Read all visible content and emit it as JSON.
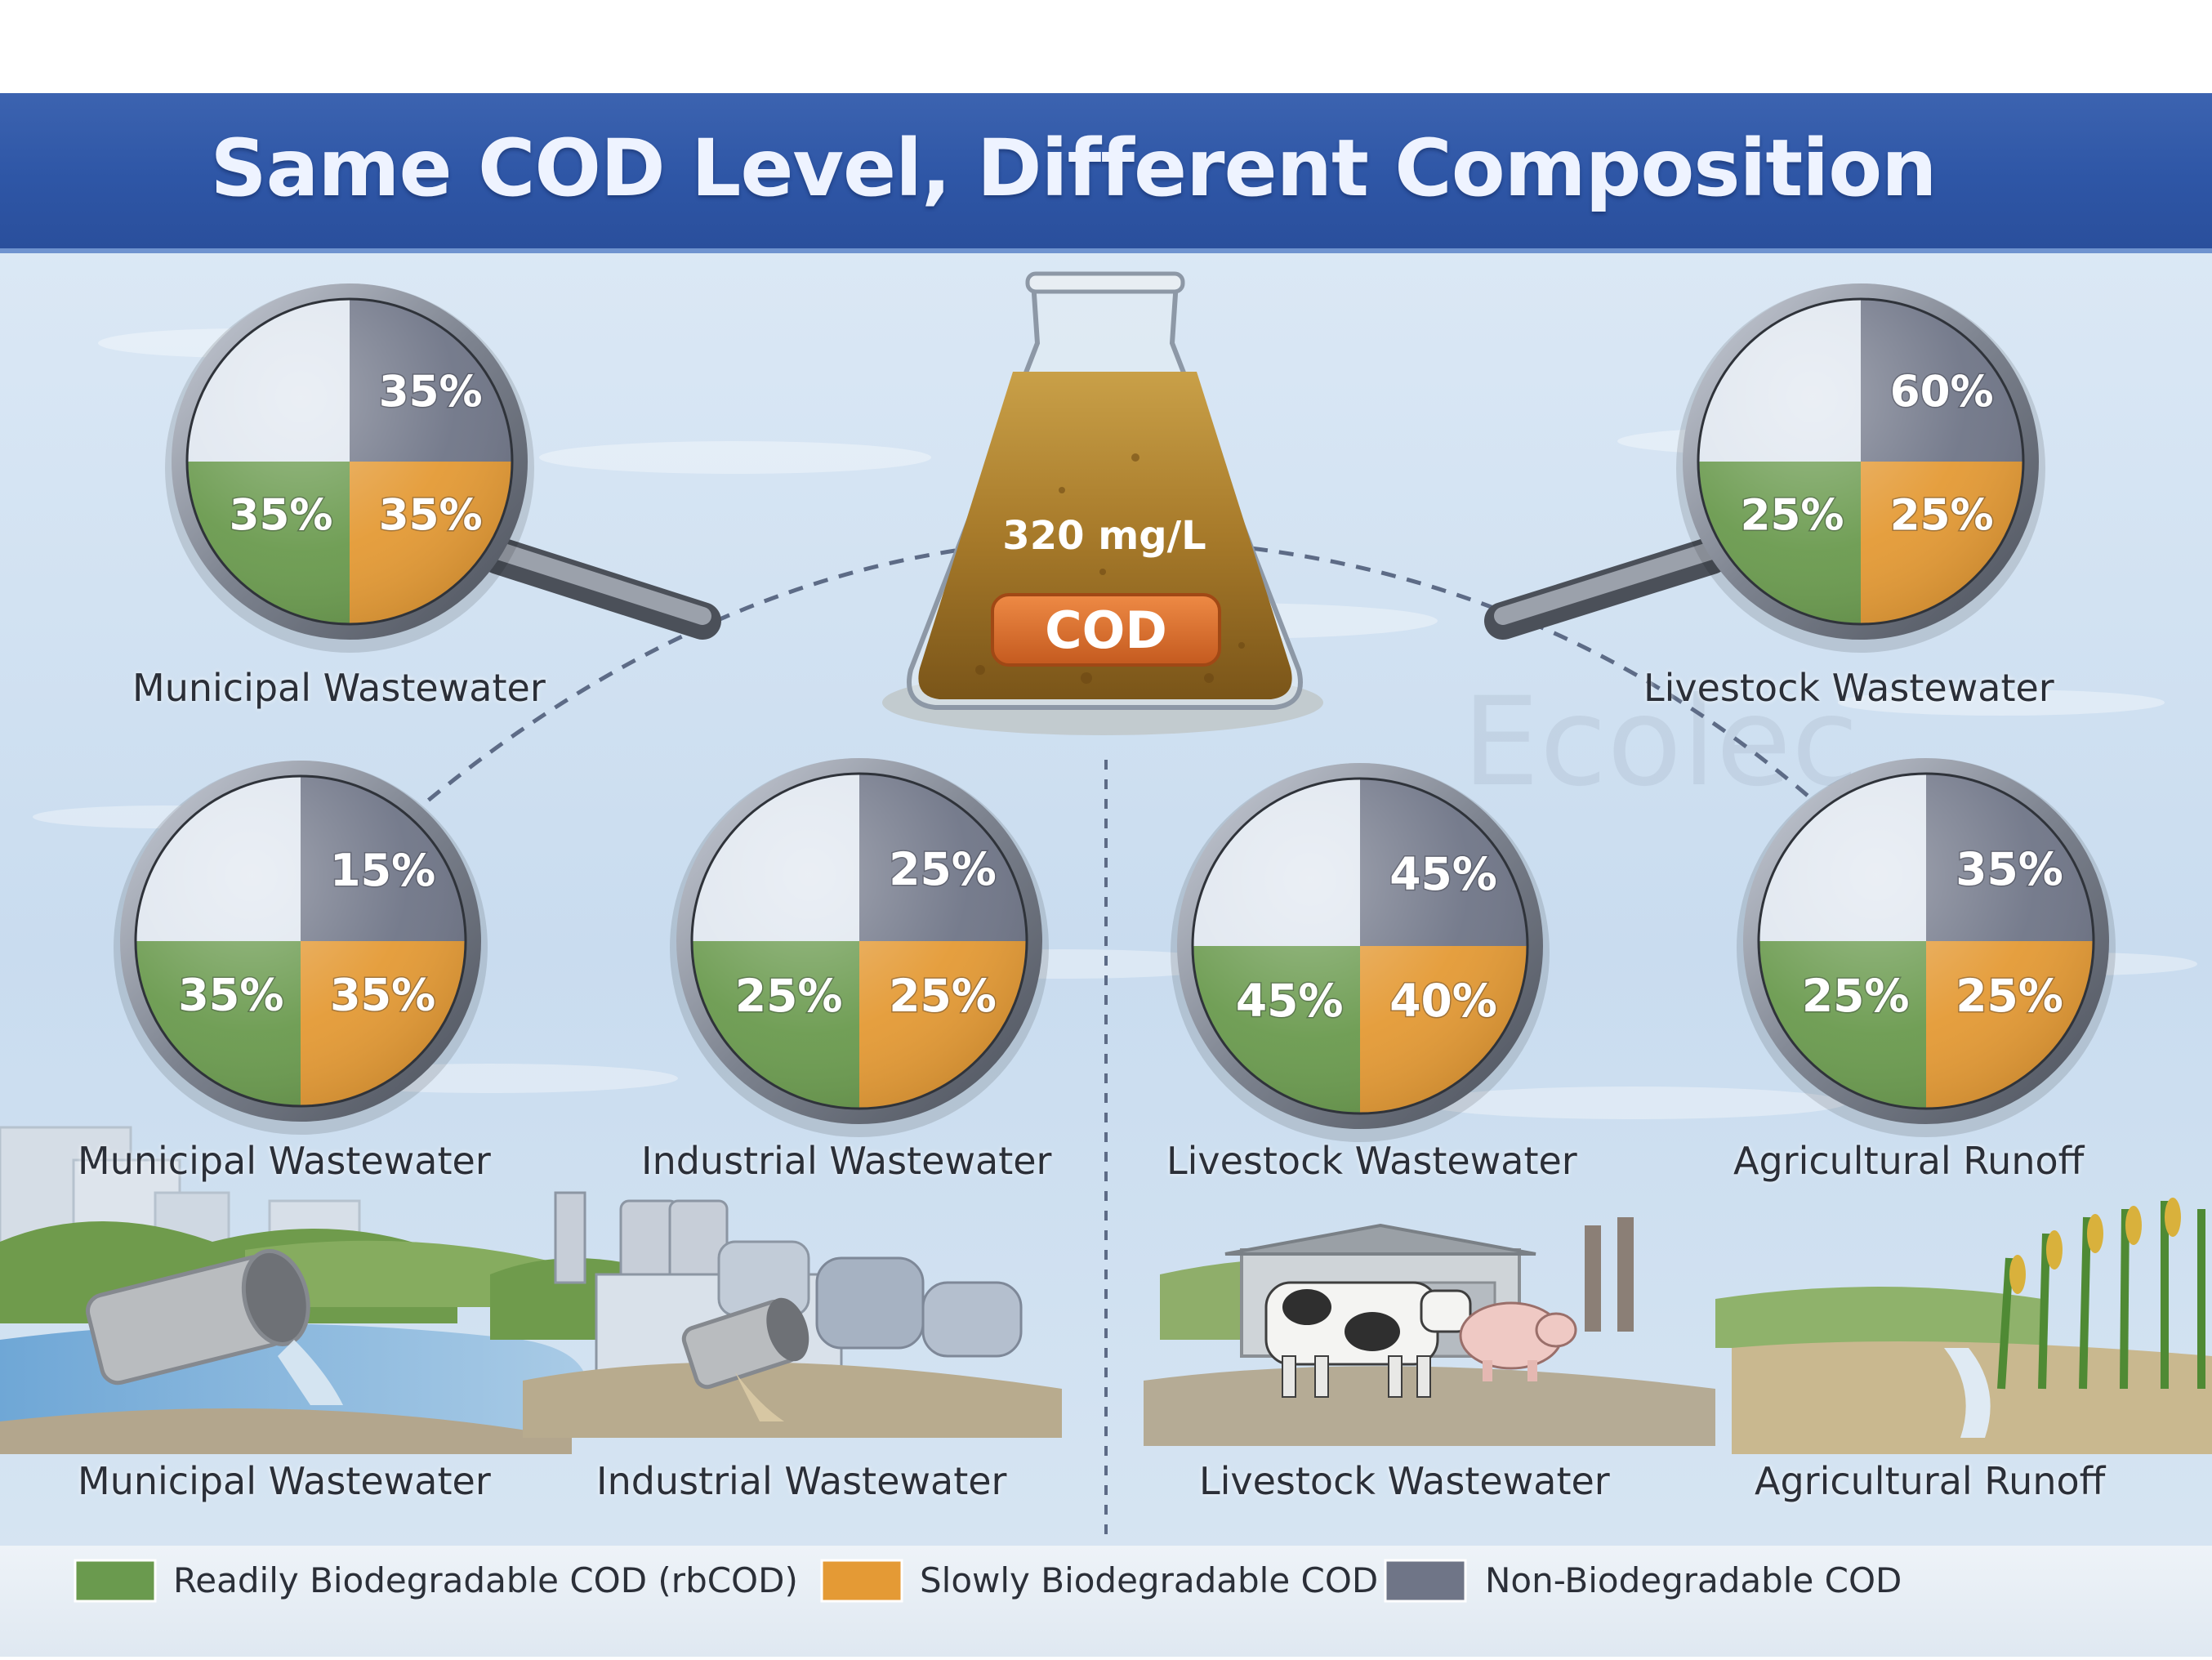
{
  "title": "Same COD Level, Different Composition",
  "colors": {
    "readily": "#6a9a4e",
    "slowly": "#e49a35",
    "non": "#6f7587",
    "blank": "#dfe6ef",
    "title_bar": "#2e56a6",
    "cod_badge": "#d9692a",
    "water": "#cfe0f0"
  },
  "flask": {
    "concentration": "320 mg/L",
    "badge": "COD"
  },
  "magnifiers": [
    {
      "label": "Municipal Wastewater",
      "non": "35%",
      "slowly": "35%",
      "readily": "35%"
    },
    {
      "label": "Livestock Wastewater",
      "non": "60%",
      "slowly": "25%",
      "readily": "25%"
    },
    {
      "label": "Municipal Wastewater",
      "non": "15%",
      "slowly": "35%",
      "readily": "35%"
    },
    {
      "label": "Industrial Wastewater",
      "non": "25%",
      "slowly": "25%",
      "readily": "25%"
    },
    {
      "label": "Livestock Wastewater",
      "non": "45%",
      "slowly": "40%",
      "readily": "45%"
    },
    {
      "label": "Agricultural Runoff",
      "non": "35%",
      "slowly": "25%",
      "readily": "25%"
    }
  ],
  "scenes": [
    {
      "label": "Municipal Wastewater"
    },
    {
      "label": "Industrial Wastewater"
    },
    {
      "label": "Livestock Wastewater"
    },
    {
      "label": "Agricultural Runoff"
    }
  ],
  "legend": [
    {
      "label": "Readily Biodegradable COD (rbCOD)",
      "color": "#6a9a4e"
    },
    {
      "label": "Slowly Biodegradable COD",
      "color": "#e49a35"
    },
    {
      "label": "Non-Biodegradable COD",
      "color": "#6f7587"
    }
  ],
  "watermark": "Ecolec"
}
